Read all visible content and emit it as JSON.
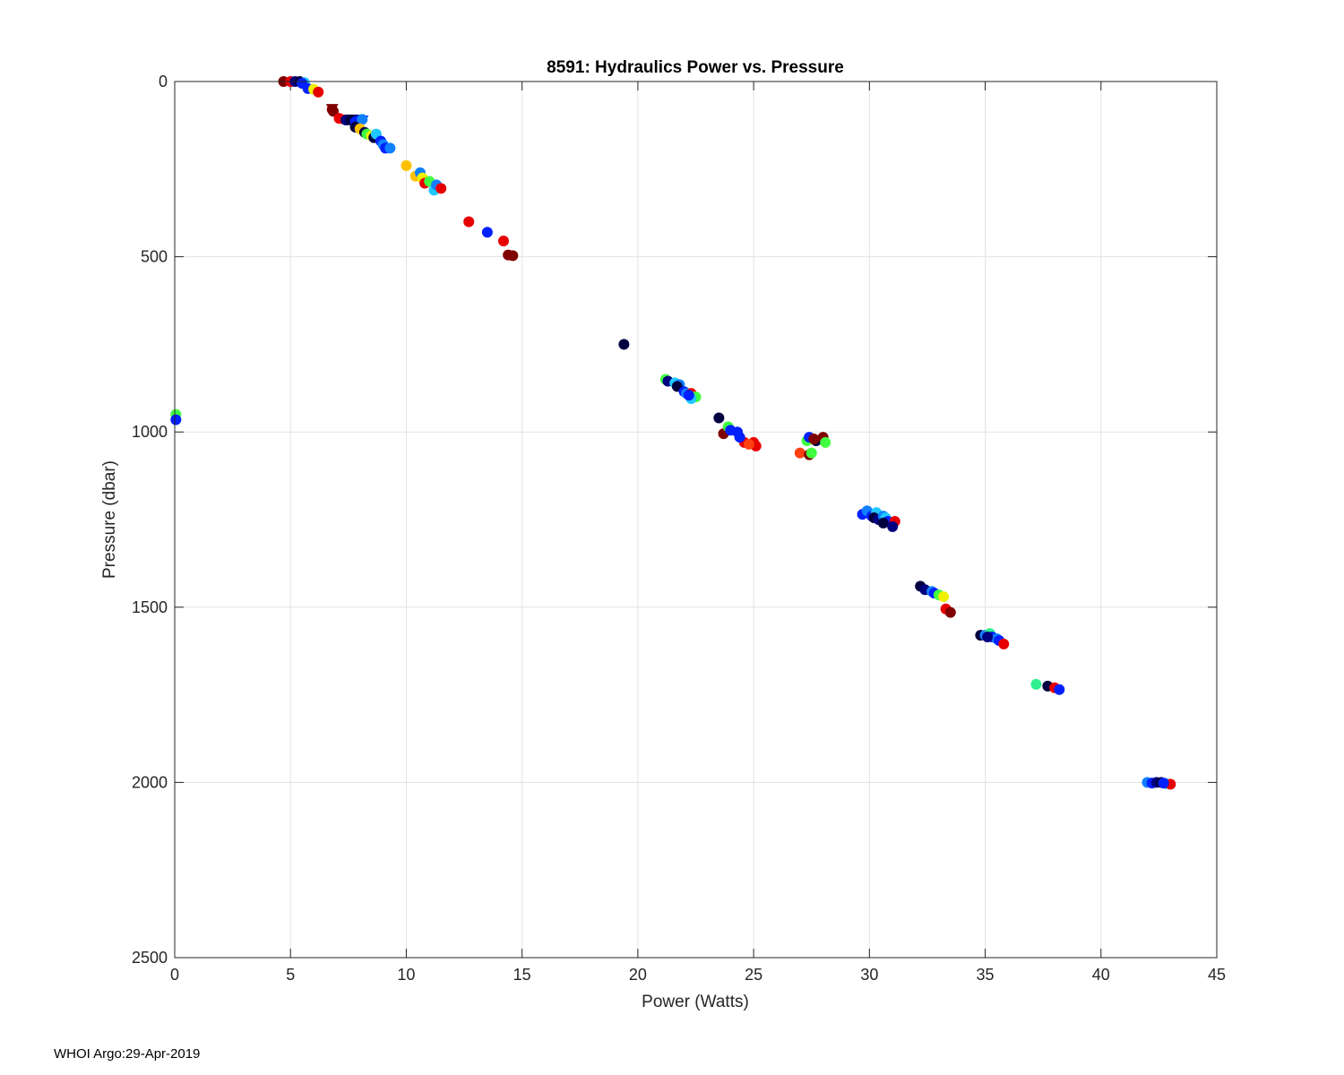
{
  "chart_data": {
    "type": "scatter",
    "title": "8591: Hydraulics Power vs. Pressure",
    "xlabel": "Power (Watts)",
    "ylabel": "Pressure (dbar)",
    "xlim": [
      0,
      45
    ],
    "ylim": [
      0,
      2500
    ],
    "y_reversed": true,
    "grid": true,
    "xticks": [
      0,
      5,
      10,
      15,
      20,
      25,
      30,
      35,
      40,
      45
    ],
    "yticks": [
      0,
      500,
      1000,
      1500,
      2000,
      2500
    ],
    "colors": {
      "darkred": "#800000",
      "red": "#e60000",
      "orangered": "#ff4010",
      "orange": "#ffc000",
      "yellow": "#f0f000",
      "green": "#40ff40",
      "mint": "#30f090",
      "cyan": "#20c8ff",
      "azure": "#1080ff",
      "blue": "#0020ff",
      "navy": "#000080",
      "darknavy": "#000040"
    },
    "points": [
      {
        "x": 0.05,
        "y": 950,
        "c": "green"
      },
      {
        "x": 0.05,
        "y": 965,
        "c": "blue"
      },
      {
        "x": 4.7,
        "y": 0,
        "c": "darkred"
      },
      {
        "x": 5.0,
        "y": 0,
        "c": "red"
      },
      {
        "x": 5.2,
        "y": 0,
        "c": "navy"
      },
      {
        "x": 5.4,
        "y": 0,
        "c": "darknavy"
      },
      {
        "x": 5.6,
        "y": 3,
        "c": "cyan"
      },
      {
        "x": 5.5,
        "y": 5,
        "c": "blue"
      },
      {
        "x": 5.75,
        "y": 20,
        "c": "blue"
      },
      {
        "x": 6.0,
        "y": 22,
        "c": "yellow"
      },
      {
        "x": 6.2,
        "y": 30,
        "c": "red"
      },
      {
        "x": 6.8,
        "y": 80,
        "c": "darkred"
      },
      {
        "x": 6.85,
        "y": 85,
        "c": "darkred"
      },
      {
        "x": 7.1,
        "y": 105,
        "c": "red"
      },
      {
        "x": 7.4,
        "y": 110,
        "c": "navy"
      },
      {
        "x": 7.6,
        "y": 110,
        "c": "darknavy"
      },
      {
        "x": 7.8,
        "y": 115,
        "c": "blue"
      },
      {
        "x": 8.1,
        "y": 108,
        "c": "azure"
      },
      {
        "x": 7.8,
        "y": 130,
        "c": "darknavy"
      },
      {
        "x": 8.0,
        "y": 135,
        "c": "orange"
      },
      {
        "x": 8.2,
        "y": 145,
        "c": "darknavy"
      },
      {
        "x": 8.3,
        "y": 150,
        "c": "green"
      },
      {
        "x": 8.5,
        "y": 155,
        "c": "yellow"
      },
      {
        "x": 8.6,
        "y": 160,
        "c": "darknavy"
      },
      {
        "x": 8.7,
        "y": 150,
        "c": "cyan"
      },
      {
        "x": 8.9,
        "y": 170,
        "c": "blue"
      },
      {
        "x": 9.0,
        "y": 180,
        "c": "azure"
      },
      {
        "x": 9.1,
        "y": 190,
        "c": "blue"
      },
      {
        "x": 9.3,
        "y": 190,
        "c": "azure"
      },
      {
        "x": 10.0,
        "y": 240,
        "c": "orange"
      },
      {
        "x": 10.4,
        "y": 270,
        "c": "orange"
      },
      {
        "x": 10.6,
        "y": 260,
        "c": "azure"
      },
      {
        "x": 10.7,
        "y": 275,
        "c": "yellow"
      },
      {
        "x": 10.8,
        "y": 290,
        "c": "red"
      },
      {
        "x": 11.0,
        "y": 285,
        "c": "green"
      },
      {
        "x": 11.2,
        "y": 310,
        "c": "cyan"
      },
      {
        "x": 11.3,
        "y": 295,
        "c": "azure"
      },
      {
        "x": 11.5,
        "y": 305,
        "c": "red"
      },
      {
        "x": 12.7,
        "y": 400,
        "c": "red"
      },
      {
        "x": 13.5,
        "y": 430,
        "c": "blue"
      },
      {
        "x": 14.2,
        "y": 455,
        "c": "red"
      },
      {
        "x": 14.4,
        "y": 495,
        "c": "darkred"
      },
      {
        "x": 14.6,
        "y": 497,
        "c": "darkred"
      },
      {
        "x": 19.4,
        "y": 750,
        "c": "darknavy"
      },
      {
        "x": 21.2,
        "y": 850,
        "c": "green"
      },
      {
        "x": 21.3,
        "y": 855,
        "c": "navy"
      },
      {
        "x": 21.6,
        "y": 860,
        "c": "cyan"
      },
      {
        "x": 21.8,
        "y": 865,
        "c": "azure"
      },
      {
        "x": 21.7,
        "y": 870,
        "c": "darknavy"
      },
      {
        "x": 22.0,
        "y": 885,
        "c": "blue"
      },
      {
        "x": 22.1,
        "y": 890,
        "c": "azure"
      },
      {
        "x": 22.3,
        "y": 890,
        "c": "red"
      },
      {
        "x": 22.4,
        "y": 900,
        "c": "orange"
      },
      {
        "x": 22.5,
        "y": 900,
        "c": "green"
      },
      {
        "x": 22.3,
        "y": 905,
        "c": "cyan"
      },
      {
        "x": 22.2,
        "y": 895,
        "c": "blue"
      },
      {
        "x": 23.5,
        "y": 960,
        "c": "darknavy"
      },
      {
        "x": 23.7,
        "y": 1005,
        "c": "darkred"
      },
      {
        "x": 23.9,
        "y": 985,
        "c": "green"
      },
      {
        "x": 24.0,
        "y": 995,
        "c": "blue"
      },
      {
        "x": 24.3,
        "y": 1000,
        "c": "blue"
      },
      {
        "x": 24.6,
        "y": 1030,
        "c": "red"
      },
      {
        "x": 25.0,
        "y": 1030,
        "c": "red"
      },
      {
        "x": 25.1,
        "y": 1040,
        "c": "red"
      },
      {
        "x": 24.4,
        "y": 1015,
        "c": "blue"
      },
      {
        "x": 24.8,
        "y": 1035,
        "c": "orangered"
      },
      {
        "x": 27.0,
        "y": 1060,
        "c": "orangered"
      },
      {
        "x": 27.4,
        "y": 1065,
        "c": "darkred"
      },
      {
        "x": 27.5,
        "y": 1060,
        "c": "green"
      },
      {
        "x": 27.3,
        "y": 1025,
        "c": "green"
      },
      {
        "x": 27.4,
        "y": 1015,
        "c": "blue"
      },
      {
        "x": 27.7,
        "y": 1025,
        "c": "darknavy"
      },
      {
        "x": 28.0,
        "y": 1015,
        "c": "darkred"
      },
      {
        "x": 28.1,
        "y": 1030,
        "c": "green"
      },
      {
        "x": 27.6,
        "y": 1020,
        "c": "darkred"
      },
      {
        "x": 29.7,
        "y": 1235,
        "c": "blue"
      },
      {
        "x": 29.9,
        "y": 1225,
        "c": "azure"
      },
      {
        "x": 30.1,
        "y": 1240,
        "c": "blue"
      },
      {
        "x": 30.3,
        "y": 1230,
        "c": "cyan"
      },
      {
        "x": 30.2,
        "y": 1245,
        "c": "darknavy"
      },
      {
        "x": 30.4,
        "y": 1250,
        "c": "navy"
      },
      {
        "x": 30.6,
        "y": 1240,
        "c": "azure"
      },
      {
        "x": 30.7,
        "y": 1245,
        "c": "cyan"
      },
      {
        "x": 30.8,
        "y": 1255,
        "c": "blue"
      },
      {
        "x": 30.6,
        "y": 1260,
        "c": "darknavy"
      },
      {
        "x": 31.1,
        "y": 1255,
        "c": "red"
      },
      {
        "x": 31.0,
        "y": 1270,
        "c": "navy"
      },
      {
        "x": 32.2,
        "y": 1440,
        "c": "darknavy"
      },
      {
        "x": 32.4,
        "y": 1450,
        "c": "navy"
      },
      {
        "x": 32.7,
        "y": 1455,
        "c": "azure"
      },
      {
        "x": 32.8,
        "y": 1460,
        "c": "blue"
      },
      {
        "x": 33.0,
        "y": 1465,
        "c": "green"
      },
      {
        "x": 33.2,
        "y": 1470,
        "c": "yellow"
      },
      {
        "x": 33.3,
        "y": 1505,
        "c": "red"
      },
      {
        "x": 33.5,
        "y": 1515,
        "c": "darkred"
      },
      {
        "x": 34.8,
        "y": 1580,
        "c": "darknavy"
      },
      {
        "x": 35.0,
        "y": 1580,
        "c": "azure"
      },
      {
        "x": 35.2,
        "y": 1575,
        "c": "mint"
      },
      {
        "x": 35.3,
        "y": 1585,
        "c": "blue"
      },
      {
        "x": 35.5,
        "y": 1590,
        "c": "azure"
      },
      {
        "x": 35.6,
        "y": 1595,
        "c": "blue"
      },
      {
        "x": 35.8,
        "y": 1605,
        "c": "red"
      },
      {
        "x": 35.1,
        "y": 1585,
        "c": "navy"
      },
      {
        "x": 37.2,
        "y": 1720,
        "c": "mint"
      },
      {
        "x": 37.7,
        "y": 1725,
        "c": "darknavy"
      },
      {
        "x": 38.0,
        "y": 1730,
        "c": "red"
      },
      {
        "x": 38.2,
        "y": 1735,
        "c": "blue"
      },
      {
        "x": 42.0,
        "y": 2000,
        "c": "azure"
      },
      {
        "x": 42.2,
        "y": 2002,
        "c": "blue"
      },
      {
        "x": 42.4,
        "y": 2000,
        "c": "navy"
      },
      {
        "x": 42.6,
        "y": 2000,
        "c": "darknavy"
      },
      {
        "x": 42.8,
        "y": 2003,
        "c": "cyan"
      },
      {
        "x": 43.0,
        "y": 2005,
        "c": "red"
      },
      {
        "x": 42.7,
        "y": 2002,
        "c": "blue"
      }
    ],
    "triangles": [
      {
        "x": 6.8,
        "y": 75,
        "c": "darkred"
      },
      {
        "x": 7.2,
        "y": 105,
        "c": "red"
      },
      {
        "x": 7.7,
        "y": 105,
        "c": "navy"
      },
      {
        "x": 8.1,
        "y": 108,
        "c": "blue"
      }
    ]
  },
  "footer": {
    "credit": "WHOI Argo:29-Apr-2019"
  }
}
